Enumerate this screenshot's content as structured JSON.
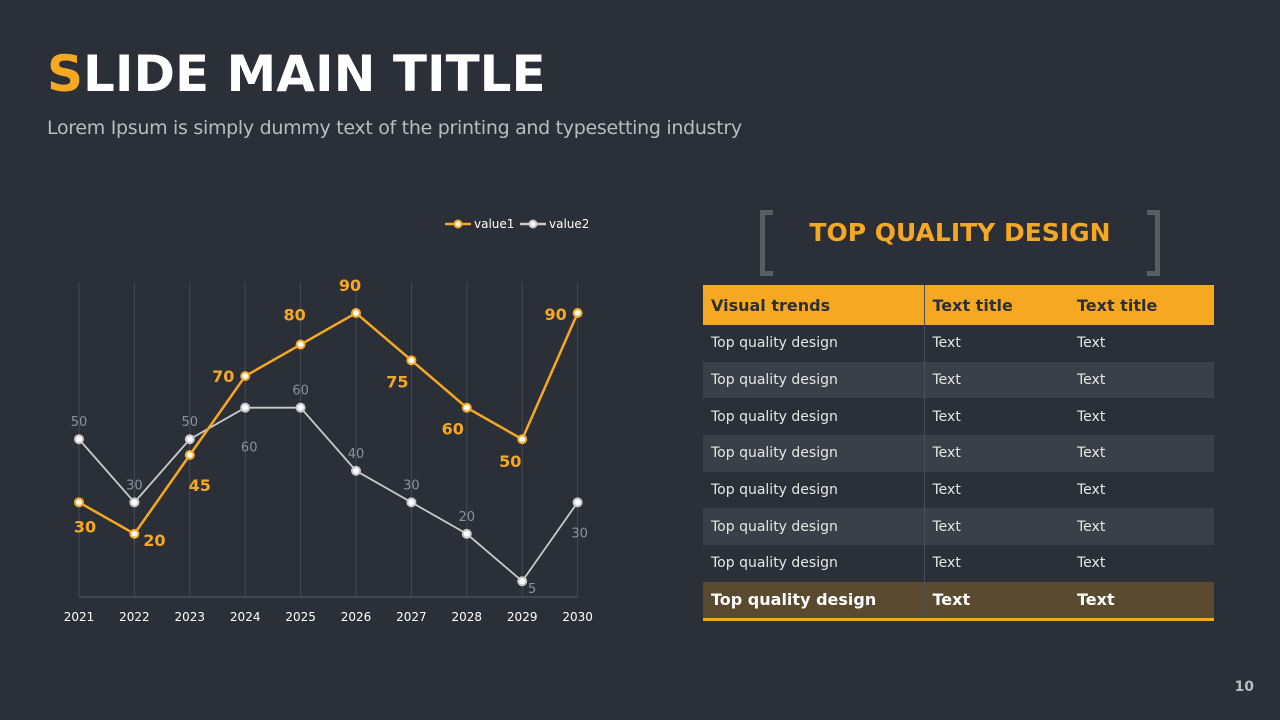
{
  "slide": {
    "title_first": "S",
    "title_rest": "LIDE MAIN TITLE",
    "subtitle": "Lorem Ipsum is simply dummy text of the printing and typesetting industry",
    "page_number": "10"
  },
  "colors": {
    "accent": "#f7a823",
    "secondary": "#c8c9cc",
    "background": "#2b2f38"
  },
  "chart_data": {
    "type": "line",
    "x": [
      "2021",
      "2022",
      "2023",
      "2024",
      "2025",
      "2026",
      "2027",
      "2028",
      "2029",
      "2030"
    ],
    "series": [
      {
        "name": "value1",
        "values": [
          30,
          20,
          45,
          70,
          80,
          90,
          75,
          60,
          50,
          90
        ],
        "color": "#f7a823"
      },
      {
        "name": "value2",
        "values": [
          50,
          30,
          50,
          60,
          60,
          40,
          30,
          20,
          5,
          30
        ],
        "color": "#c8c9cc"
      }
    ],
    "legend": "top",
    "grid": "vertical",
    "data_labels": true
  },
  "panel": {
    "title": "TOP QUALITY DESIGN",
    "headers": [
      "Visual trends",
      "Text title",
      "Text title"
    ],
    "rows": [
      [
        "Top quality design",
        "Text",
        "Text"
      ],
      [
        "Top quality design",
        "Text",
        "Text"
      ],
      [
        "Top quality design",
        "Text",
        "Text"
      ],
      [
        "Top quality design",
        "Text",
        "Text"
      ],
      [
        "Top quality design",
        "Text",
        "Text"
      ],
      [
        "Top quality design",
        "Text",
        "Text"
      ],
      [
        "Top quality design",
        "Text",
        "Text"
      ]
    ],
    "total_row": [
      "Top quality design",
      "Text",
      "Text"
    ]
  }
}
